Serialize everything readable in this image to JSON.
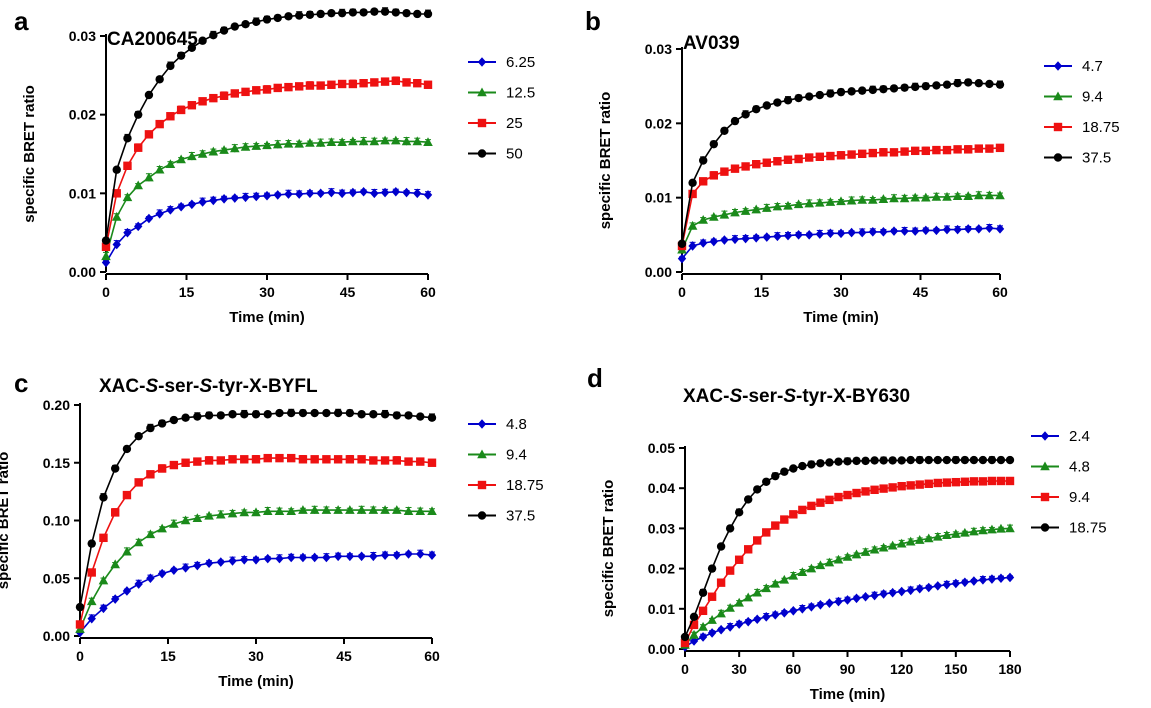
{
  "chart_data": [
    {
      "panel": "a",
      "type": "scatter",
      "title": "CA200645",
      "xlabel": "Time (min)",
      "ylabel": "specific BRET ratio",
      "xlim": [
        0,
        60
      ],
      "ylim": [
        0,
        0.03
      ],
      "xticks": [
        0,
        15,
        30,
        45,
        60
      ],
      "yticks": [
        0.0,
        0.01,
        0.02,
        0.03
      ],
      "ytick_labels": [
        "0.00",
        "0.01",
        "0.02",
        "0.03"
      ],
      "legend_position": "right",
      "sample_step": 2,
      "error_bars": true,
      "fit_curves": true,
      "series": [
        {
          "label": "6.25",
          "color": "#0000cc",
          "marker": "diamond",
          "values": [
            0.0012,
            0.0035,
            0.005,
            0.0058,
            0.0068,
            0.0074,
            0.0079,
            0.0083,
            0.0086,
            0.0089,
            0.0091,
            0.0093,
            0.0094,
            0.0095,
            0.0096,
            0.0097,
            0.0098,
            0.0099,
            0.0099,
            0.01,
            0.01,
            0.0101,
            0.01,
            0.0101,
            0.0102,
            0.01,
            0.0101,
            0.0102,
            0.0101,
            0.01,
            0.0098
          ]
        },
        {
          "label": "12.5",
          "color": "#1a8a1a",
          "marker": "triangle",
          "values": [
            0.002,
            0.007,
            0.0095,
            0.011,
            0.012,
            0.013,
            0.0137,
            0.0143,
            0.0147,
            0.015,
            0.0153,
            0.0155,
            0.0157,
            0.0159,
            0.016,
            0.0161,
            0.0162,
            0.0163,
            0.0163,
            0.0164,
            0.0164,
            0.0165,
            0.0165,
            0.0166,
            0.0166,
            0.0166,
            0.0167,
            0.0167,
            0.0166,
            0.0166,
            0.0165
          ]
        },
        {
          "label": "25",
          "color": "#ee1111",
          "marker": "square",
          "values": [
            0.0032,
            0.01,
            0.0135,
            0.0158,
            0.0175,
            0.0188,
            0.0198,
            0.0206,
            0.0212,
            0.0217,
            0.0221,
            0.0224,
            0.0227,
            0.0229,
            0.0231,
            0.0232,
            0.0234,
            0.0235,
            0.0236,
            0.0237,
            0.0237,
            0.0238,
            0.0239,
            0.0239,
            0.024,
            0.0241,
            0.0242,
            0.0243,
            0.0241,
            0.024,
            0.0238
          ]
        },
        {
          "label": "50",
          "color": "#000000",
          "marker": "circle",
          "values": [
            0.004,
            0.013,
            0.017,
            0.02,
            0.0225,
            0.0245,
            0.0262,
            0.0275,
            0.0285,
            0.0294,
            0.0301,
            0.0307,
            0.0312,
            0.0315,
            0.0318,
            0.0321,
            0.0323,
            0.0325,
            0.0326,
            0.0327,
            0.0328,
            0.0329,
            0.0329,
            0.033,
            0.033,
            0.0331,
            0.0331,
            0.033,
            0.0329,
            0.0328,
            0.0328
          ]
        }
      ]
    },
    {
      "panel": "b",
      "type": "scatter",
      "title": "AV039",
      "xlabel": "Time (min)",
      "ylabel": "specific BRET ratio",
      "xlim": [
        0,
        60
      ],
      "ylim": [
        0,
        0.03
      ],
      "xticks": [
        0,
        15,
        30,
        45,
        60
      ],
      "yticks": [
        0.0,
        0.01,
        0.02,
        0.03
      ],
      "ytick_labels": [
        "0.00",
        "0.01",
        "0.02",
        "0.03"
      ],
      "legend_position": "right",
      "sample_step": 2,
      "error_bars": true,
      "fit_curves": true,
      "series": [
        {
          "label": "4.7",
          "color": "#0000cc",
          "marker": "diamond",
          "values": [
            0.0018,
            0.0035,
            0.0039,
            0.0041,
            0.0043,
            0.0044,
            0.0045,
            0.0046,
            0.0047,
            0.0048,
            0.0049,
            0.005,
            0.005,
            0.0051,
            0.0052,
            0.0052,
            0.0053,
            0.0053,
            0.0054,
            0.0054,
            0.0055,
            0.0055,
            0.0055,
            0.0056,
            0.0056,
            0.0057,
            0.0057,
            0.0058,
            0.0058,
            0.0059,
            0.0058
          ]
        },
        {
          "label": "9.4",
          "color": "#1a8a1a",
          "marker": "triangle",
          "values": [
            0.003,
            0.0062,
            0.007,
            0.0074,
            0.0077,
            0.008,
            0.0082,
            0.0084,
            0.0086,
            0.0088,
            0.0089,
            0.0091,
            0.0092,
            0.0093,
            0.0094,
            0.0095,
            0.0096,
            0.0097,
            0.0097,
            0.0098,
            0.0099,
            0.0099,
            0.01,
            0.01,
            0.0101,
            0.0101,
            0.0102,
            0.0102,
            0.0103,
            0.0103,
            0.0103
          ]
        },
        {
          "label": "18.75",
          "color": "#ee1111",
          "marker": "square",
          "values": [
            0.0035,
            0.0105,
            0.0122,
            0.013,
            0.0135,
            0.0139,
            0.0142,
            0.0145,
            0.0147,
            0.0149,
            0.0151,
            0.0152,
            0.0154,
            0.0155,
            0.0156,
            0.0157,
            0.0158,
            0.0159,
            0.016,
            0.0161,
            0.0161,
            0.0162,
            0.0163,
            0.0163,
            0.0164,
            0.0164,
            0.0165,
            0.0165,
            0.0166,
            0.0166,
            0.0167
          ]
        },
        {
          "label": "37.5",
          "color": "#000000",
          "marker": "circle",
          "values": [
            0.0038,
            0.012,
            0.015,
            0.0172,
            0.019,
            0.0203,
            0.0212,
            0.0219,
            0.0224,
            0.0228,
            0.0231,
            0.0234,
            0.0236,
            0.0238,
            0.024,
            0.0242,
            0.0243,
            0.0244,
            0.0245,
            0.0246,
            0.0247,
            0.0248,
            0.0249,
            0.025,
            0.0251,
            0.0252,
            0.0254,
            0.0255,
            0.0254,
            0.0253,
            0.0252
          ]
        }
      ]
    },
    {
      "panel": "c",
      "type": "scatter",
      "title": "XAC-S-ser-S-tyr-X-BYFL",
      "xlabel": "Time (min)",
      "ylabel": "specific BRET ratio",
      "xlim": [
        0,
        60
      ],
      "ylim": [
        0,
        0.2
      ],
      "xticks": [
        0,
        15,
        30,
        45,
        60
      ],
      "yticks": [
        0.0,
        0.05,
        0.1,
        0.15,
        0.2
      ],
      "ytick_labels": [
        "0.00",
        "0.05",
        "0.10",
        "0.15",
        "0.20"
      ],
      "legend_position": "right",
      "sample_step": 2,
      "error_bars": true,
      "fit_curves": true,
      "series": [
        {
          "label": "4.8",
          "color": "#0000cc",
          "marker": "diamond",
          "values": [
            0.003,
            0.015,
            0.024,
            0.032,
            0.039,
            0.045,
            0.05,
            0.054,
            0.057,
            0.059,
            0.061,
            0.063,
            0.064,
            0.065,
            0.066,
            0.066,
            0.067,
            0.067,
            0.068,
            0.068,
            0.068,
            0.068,
            0.069,
            0.069,
            0.069,
            0.069,
            0.07,
            0.07,
            0.071,
            0.071,
            0.07
          ]
        },
        {
          "label": "9.4",
          "color": "#1a8a1a",
          "marker": "triangle",
          "values": [
            0.006,
            0.03,
            0.048,
            0.062,
            0.073,
            0.081,
            0.088,
            0.093,
            0.097,
            0.1,
            0.102,
            0.104,
            0.105,
            0.106,
            0.107,
            0.107,
            0.108,
            0.108,
            0.108,
            0.109,
            0.109,
            0.109,
            0.109,
            0.109,
            0.109,
            0.109,
            0.109,
            0.109,
            0.108,
            0.108,
            0.108
          ]
        },
        {
          "label": "18.75",
          "color": "#ee1111",
          "marker": "square",
          "values": [
            0.01,
            0.055,
            0.085,
            0.107,
            0.122,
            0.133,
            0.14,
            0.145,
            0.148,
            0.15,
            0.151,
            0.152,
            0.152,
            0.153,
            0.153,
            0.153,
            0.154,
            0.154,
            0.154,
            0.153,
            0.153,
            0.153,
            0.153,
            0.153,
            0.153,
            0.152,
            0.152,
            0.152,
            0.151,
            0.151,
            0.15
          ]
        },
        {
          "label": "37.5",
          "color": "#000000",
          "marker": "circle",
          "values": [
            0.025,
            0.08,
            0.12,
            0.145,
            0.162,
            0.173,
            0.18,
            0.184,
            0.187,
            0.189,
            0.19,
            0.191,
            0.191,
            0.192,
            0.192,
            0.192,
            0.192,
            0.193,
            0.193,
            0.193,
            0.193,
            0.193,
            0.193,
            0.193,
            0.192,
            0.192,
            0.192,
            0.191,
            0.191,
            0.19,
            0.189
          ]
        }
      ]
    },
    {
      "panel": "d",
      "type": "scatter",
      "title": "XAC-S-ser-S-tyr-X-BY630",
      "xlabel": "Time (min)",
      "ylabel": "specific BRET ratio",
      "xlim": [
        0,
        180
      ],
      "ylim": [
        0,
        0.05
      ],
      "xticks": [
        0,
        30,
        60,
        90,
        120,
        150,
        180
      ],
      "yticks": [
        0.0,
        0.01,
        0.02,
        0.03,
        0.04,
        0.05
      ],
      "ytick_labels": [
        "0.00",
        "0.01",
        "0.02",
        "0.03",
        "0.04",
        "0.05"
      ],
      "legend_position": "right",
      "sample_step": 5,
      "error_bars": true,
      "fit_curves": true,
      "series": [
        {
          "label": "2.4",
          "color": "#0000cc",
          "marker": "diamond",
          "values": [
            0.0005,
            0.002,
            0.003,
            0.004,
            0.0048,
            0.0055,
            0.0062,
            0.0068,
            0.0074,
            0.008,
            0.0085,
            0.009,
            0.0095,
            0.01,
            0.0105,
            0.011,
            0.0114,
            0.0118,
            0.0122,
            0.0126,
            0.013,
            0.0133,
            0.0137,
            0.014,
            0.0143,
            0.0146,
            0.015,
            0.0153,
            0.0157,
            0.016,
            0.0163,
            0.0166,
            0.0169,
            0.0172,
            0.0174,
            0.0176,
            0.0178
          ]
        },
        {
          "label": "4.8",
          "color": "#1a8a1a",
          "marker": "triangle",
          "values": [
            0.001,
            0.0035,
            0.0055,
            0.0072,
            0.0088,
            0.0102,
            0.0115,
            0.0128,
            0.014,
            0.0151,
            0.0162,
            0.0172,
            0.0182,
            0.0191,
            0.02,
            0.0208,
            0.0215,
            0.0222,
            0.0229,
            0.0235,
            0.0241,
            0.0247,
            0.0252,
            0.0257,
            0.0262,
            0.0267,
            0.0271,
            0.0275,
            0.0279,
            0.0283,
            0.0286,
            0.0289,
            0.0292,
            0.0295,
            0.0297,
            0.0299,
            0.03
          ]
        },
        {
          "label": "9.4",
          "color": "#ee1111",
          "marker": "square",
          "values": [
            0.0015,
            0.006,
            0.0095,
            0.013,
            0.0165,
            0.0195,
            0.0222,
            0.0248,
            0.027,
            0.029,
            0.0307,
            0.0322,
            0.0335,
            0.0346,
            0.0356,
            0.0364,
            0.0371,
            0.0378,
            0.0383,
            0.0388,
            0.0392,
            0.0396,
            0.0399,
            0.0402,
            0.0405,
            0.0407,
            0.0409,
            0.0411,
            0.0413,
            0.0414,
            0.0415,
            0.0416,
            0.0417,
            0.0417,
            0.0418,
            0.0418,
            0.0418
          ]
        },
        {
          "label": "18.75",
          "color": "#000000",
          "marker": "circle",
          "values": [
            0.003,
            0.008,
            0.014,
            0.02,
            0.0255,
            0.03,
            0.034,
            0.0372,
            0.0397,
            0.0416,
            0.043,
            0.0441,
            0.0449,
            0.0455,
            0.0459,
            0.0462,
            0.0464,
            0.0466,
            0.0467,
            0.0468,
            0.0468,
            0.0469,
            0.0469,
            0.0469,
            0.0469,
            0.047,
            0.047,
            0.047,
            0.047,
            0.047,
            0.047,
            0.047,
            0.047,
            0.047,
            0.047,
            0.047,
            0.047
          ]
        }
      ]
    }
  ]
}
